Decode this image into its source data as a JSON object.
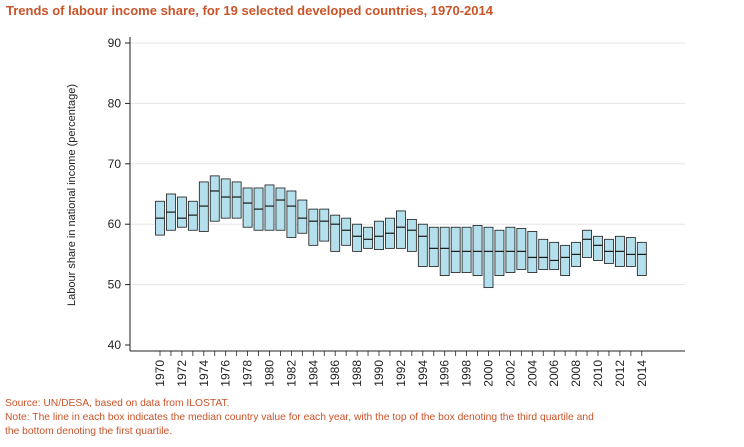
{
  "chart_data": {
    "type": "boxplot",
    "title": "Trends of labour income share, for 19 selected developed countries, 1970-2014",
    "xlabel": "",
    "ylabel": "Labour share in national income (percentage)",
    "ylim": [
      40,
      90
    ],
    "yticks": [
      40,
      50,
      60,
      70,
      80,
      90
    ],
    "xlabeled_years": [
      "1970",
      "1972",
      "1974",
      "1976",
      "1978",
      "1980",
      "1982",
      "1984",
      "1986",
      "1988",
      "1990",
      "1992",
      "1994",
      "1996",
      "1998",
      "2000",
      "2002",
      "2004",
      "2006",
      "2008",
      "2010",
      "2012",
      "2014"
    ],
    "grid": true,
    "series": [
      {
        "year": 1970,
        "q1": 58.2,
        "median": 61.0,
        "q3": 63.8
      },
      {
        "year": 1971,
        "q1": 59.0,
        "median": 62.0,
        "q3": 65.0
      },
      {
        "year": 1972,
        "q1": 59.5,
        "median": 61.0,
        "q3": 64.5
      },
      {
        "year": 1973,
        "q1": 59.0,
        "median": 61.5,
        "q3": 63.8
      },
      {
        "year": 1974,
        "q1": 58.8,
        "median": 63.0,
        "q3": 67.0
      },
      {
        "year": 1975,
        "q1": 60.5,
        "median": 65.5,
        "q3": 68.0
      },
      {
        "year": 1976,
        "q1": 61.0,
        "median": 64.5,
        "q3": 67.5
      },
      {
        "year": 1977,
        "q1": 61.0,
        "median": 64.5,
        "q3": 67.0
      },
      {
        "year": 1978,
        "q1": 59.5,
        "median": 63.5,
        "q3": 66.0
      },
      {
        "year": 1979,
        "q1": 59.0,
        "median": 62.5,
        "q3": 66.0
      },
      {
        "year": 1980,
        "q1": 59.0,
        "median": 63.0,
        "q3": 66.5
      },
      {
        "year": 1981,
        "q1": 59.0,
        "median": 64.0,
        "q3": 66.0
      },
      {
        "year": 1982,
        "q1": 57.8,
        "median": 63.0,
        "q3": 65.5
      },
      {
        "year": 1983,
        "q1": 58.5,
        "median": 61.0,
        "q3": 64.0
      },
      {
        "year": 1984,
        "q1": 56.5,
        "median": 60.5,
        "q3": 62.5
      },
      {
        "year": 1985,
        "q1": 57.2,
        "median": 60.5,
        "q3": 62.5
      },
      {
        "year": 1986,
        "q1": 55.5,
        "median": 60.0,
        "q3": 61.5
      },
      {
        "year": 1987,
        "q1": 56.5,
        "median": 59.0,
        "q3": 61.0
      },
      {
        "year": 1988,
        "q1": 55.5,
        "median": 58.0,
        "q3": 60.0
      },
      {
        "year": 1989,
        "q1": 56.0,
        "median": 57.5,
        "q3": 59.5
      },
      {
        "year": 1990,
        "q1": 55.8,
        "median": 58.0,
        "q3": 60.5
      },
      {
        "year": 1991,
        "q1": 56.0,
        "median": 58.5,
        "q3": 61.0
      },
      {
        "year": 1992,
        "q1": 56.0,
        "median": 59.5,
        "q3": 62.2
      },
      {
        "year": 1993,
        "q1": 55.5,
        "median": 59.0,
        "q3": 60.8
      },
      {
        "year": 1994,
        "q1": 53.0,
        "median": 58.0,
        "q3": 60.0
      },
      {
        "year": 1995,
        "q1": 53.0,
        "median": 56.0,
        "q3": 59.5
      },
      {
        "year": 1996,
        "q1": 51.5,
        "median": 56.0,
        "q3": 59.5
      },
      {
        "year": 1997,
        "q1": 52.0,
        "median": 55.5,
        "q3": 59.5
      },
      {
        "year": 1998,
        "q1": 52.0,
        "median": 55.5,
        "q3": 59.5
      },
      {
        "year": 1999,
        "q1": 51.5,
        "median": 55.5,
        "q3": 59.8
      },
      {
        "year": 2000,
        "q1": 49.5,
        "median": 55.5,
        "q3": 59.5
      },
      {
        "year": 2001,
        "q1": 51.5,
        "median": 55.5,
        "q3": 59.0
      },
      {
        "year": 2002,
        "q1": 52.0,
        "median": 55.5,
        "q3": 59.5
      },
      {
        "year": 2003,
        "q1": 52.5,
        "median": 55.5,
        "q3": 59.3
      },
      {
        "year": 2004,
        "q1": 52.0,
        "median": 54.5,
        "q3": 58.8
      },
      {
        "year": 2005,
        "q1": 52.5,
        "median": 54.5,
        "q3": 57.5
      },
      {
        "year": 2006,
        "q1": 52.5,
        "median": 54.0,
        "q3": 57.0
      },
      {
        "year": 2007,
        "q1": 51.5,
        "median": 54.5,
        "q3": 56.5
      },
      {
        "year": 2008,
        "q1": 53.0,
        "median": 55.0,
        "q3": 57.0
      },
      {
        "year": 2009,
        "q1": 54.5,
        "median": 57.5,
        "q3": 59.0
      },
      {
        "year": 2010,
        "q1": 54.0,
        "median": 56.5,
        "q3": 58.0
      },
      {
        "year": 2011,
        "q1": 53.5,
        "median": 55.5,
        "q3": 57.5
      },
      {
        "year": 2012,
        "q1": 53.0,
        "median": 55.5,
        "q3": 58.0
      },
      {
        "year": 2013,
        "q1": 53.0,
        "median": 55.0,
        "q3": 57.8
      },
      {
        "year": 2014,
        "q1": 51.5,
        "median": 55.0,
        "q3": 57.0
      }
    ],
    "colors": {
      "box_fill": "#b3e0ec",
      "box_stroke": "#1a1a1a",
      "median": "#1a1a1a",
      "gridline": "#e5e5e5",
      "axis": "#222222"
    }
  },
  "footer": {
    "source": "Source: UN/DESA, based on data from ILOSTAT.",
    "note_line_1": "Note: The line in each box indicates the median country value for each year, with the top of the box denoting the third quartile and",
    "note_line_2": "the bottom denoting the first quartile."
  }
}
